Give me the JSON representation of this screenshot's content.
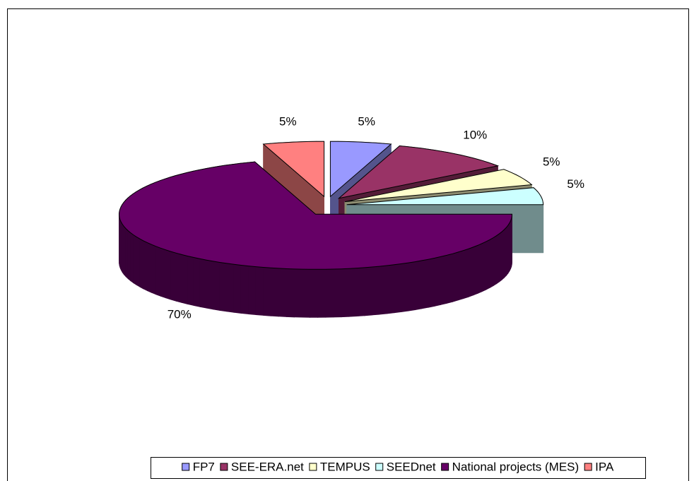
{
  "chart_data": {
    "type": "pie",
    "categories": [
      "FP7",
      "SEE-ERA.net",
      "TEMPUS",
      "SEEDnet",
      "National projects (MES)",
      "IPA"
    ],
    "values": [
      5,
      10,
      5,
      5,
      70,
      5
    ],
    "value_labels": [
      "5%",
      "10%",
      "5%",
      "5%",
      "70%",
      "5%"
    ],
    "colors": [
      "#9999ff",
      "#993366",
      "#ffffcc",
      "#ccffff",
      "#660066",
      "#ff8080"
    ],
    "legend": "bottom"
  }
}
